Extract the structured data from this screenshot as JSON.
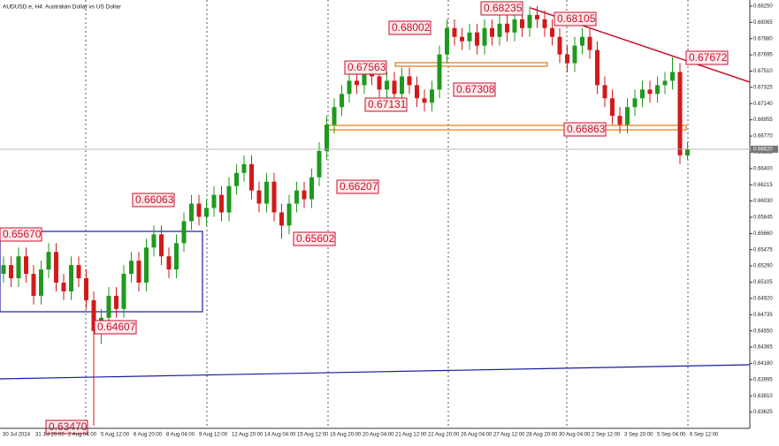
{
  "chart_data": {
    "type": "candlestick",
    "title": "AUDUSD.e, H4:  Australian Dollar vs US Dollar",
    "up_color": "#1e9a1e",
    "down_color": "#d11a1a",
    "open": [
      0.652,
      0.653,
      0.6515,
      0.654,
      0.652,
      0.6495,
      0.6525,
      0.6545,
      0.651,
      0.65,
      0.653,
      0.6515,
      0.649,
      0.6455,
      0.647,
      0.6495,
      0.648,
      0.652,
      0.6535,
      0.651,
      0.655,
      0.6565,
      0.654,
      0.6525,
      0.6555,
      0.658,
      0.66,
      0.6585,
      0.6595,
      0.661,
      0.659,
      0.662,
      0.6635,
      0.6645,
      0.6615,
      0.66,
      0.6625,
      0.659,
      0.6575,
      0.66,
      0.6615,
      0.6605,
      0.663,
      0.666,
      0.669,
      0.671,
      0.6725,
      0.674,
      0.6735,
      0.675,
      0.6745,
      0.673,
      0.674,
      0.6725,
      0.6745,
      0.6735,
      0.672,
      0.6715,
      0.673,
      0.677,
      0.68,
      0.679,
      0.6785,
      0.6795,
      0.678,
      0.68,
      0.679,
      0.6805,
      0.6795,
      0.681,
      0.68,
      0.6815,
      0.681,
      0.68,
      0.679,
      0.677,
      0.676,
      0.678,
      0.679,
      0.6775,
      0.6735,
      0.672,
      0.67,
      0.669,
      0.671,
      0.672,
      0.673,
      0.6725,
      0.6735,
      0.674,
      0.675,
      0.6655
    ],
    "high": [
      0.654,
      0.654,
      0.655,
      0.655,
      0.653,
      0.6535,
      0.6555,
      0.6555,
      0.652,
      0.654,
      0.654,
      0.6525,
      0.65,
      0.648,
      0.6505,
      0.6505,
      0.653,
      0.6545,
      0.6545,
      0.656,
      0.6575,
      0.6575,
      0.655,
      0.6565,
      0.659,
      0.661,
      0.661,
      0.6605,
      0.662,
      0.662,
      0.663,
      0.6645,
      0.6655,
      0.6655,
      0.6625,
      0.6635,
      0.6635,
      0.66,
      0.661,
      0.6625,
      0.6625,
      0.664,
      0.667,
      0.67,
      0.672,
      0.6735,
      0.675,
      0.675,
      0.676,
      0.676,
      0.6755,
      0.675,
      0.675,
      0.6755,
      0.6755,
      0.6745,
      0.673,
      0.674,
      0.678,
      0.681,
      0.681,
      0.68,
      0.6805,
      0.6805,
      0.681,
      0.681,
      0.6815,
      0.6815,
      0.682,
      0.6824,
      0.6825,
      0.6825,
      0.682,
      0.681,
      0.68,
      0.678,
      0.679,
      0.68,
      0.68,
      0.6785,
      0.6745,
      0.673,
      0.671,
      0.672,
      0.673,
      0.674,
      0.674,
      0.6745,
      0.675,
      0.6767,
      0.676,
      0.667
    ],
    "low": [
      0.651,
      0.6505,
      0.6505,
      0.651,
      0.6485,
      0.6485,
      0.6515,
      0.65,
      0.649,
      0.649,
      0.6505,
      0.648,
      0.6347,
      0.644,
      0.646,
      0.647,
      0.647,
      0.651,
      0.65,
      0.65,
      0.654,
      0.653,
      0.6515,
      0.6515,
      0.6545,
      0.657,
      0.6575,
      0.6575,
      0.6585,
      0.658,
      0.658,
      0.661,
      0.6625,
      0.6605,
      0.659,
      0.659,
      0.658,
      0.656,
      0.6565,
      0.659,
      0.6595,
      0.6595,
      0.662,
      0.665,
      0.668,
      0.67,
      0.6715,
      0.6725,
      0.6725,
      0.6735,
      0.672,
      0.672,
      0.6715,
      0.6715,
      0.6725,
      0.671,
      0.6705,
      0.6705,
      0.672,
      0.676,
      0.678,
      0.6775,
      0.6775,
      0.677,
      0.677,
      0.678,
      0.678,
      0.6785,
      0.6785,
      0.679,
      0.679,
      0.68,
      0.679,
      0.678,
      0.676,
      0.675,
      0.675,
      0.677,
      0.6765,
      0.6725,
      0.671,
      0.669,
      0.668,
      0.668,
      0.67,
      0.671,
      0.6715,
      0.6715,
      0.6725,
      0.673,
      0.6645,
      0.665
    ],
    "close": [
      0.653,
      0.6515,
      0.654,
      0.652,
      0.6495,
      0.6525,
      0.6545,
      0.651,
      0.65,
      0.653,
      0.6515,
      0.649,
      0.6455,
      0.647,
      0.6495,
      0.648,
      0.652,
      0.6535,
      0.651,
      0.655,
      0.6565,
      0.654,
      0.6525,
      0.6555,
      0.658,
      0.66,
      0.6585,
      0.6595,
      0.661,
      0.659,
      0.662,
      0.6635,
      0.6645,
      0.6615,
      0.66,
      0.6625,
      0.659,
      0.6575,
      0.66,
      0.6615,
      0.6605,
      0.663,
      0.666,
      0.669,
      0.671,
      0.6725,
      0.674,
      0.6735,
      0.675,
      0.6745,
      0.673,
      0.674,
      0.6725,
      0.6745,
      0.6735,
      0.672,
      0.6715,
      0.673,
      0.677,
      0.68,
      0.679,
      0.6785,
      0.6795,
      0.678,
      0.68,
      0.679,
      0.6805,
      0.6795,
      0.681,
      0.68,
      0.6815,
      0.681,
      0.68,
      0.679,
      0.677,
      0.676,
      0.678,
      0.679,
      0.6775,
      0.6735,
      0.672,
      0.67,
      0.669,
      0.671,
      0.672,
      0.673,
      0.6725,
      0.6735,
      0.674,
      0.675,
      0.6655,
      0.6662
    ],
    "ylim": [
      0.6344,
      0.6832
    ],
    "yticks": [
      {
        "value": 0.6825,
        "label": "0.68250"
      },
      {
        "value": 0.68065,
        "label": "0.68065"
      },
      {
        "value": 0.6788,
        "label": "0.67880"
      },
      {
        "value": 0.67695,
        "label": "0.67695"
      },
      {
        "value": 0.6751,
        "label": "0.67510"
      },
      {
        "value": 0.67325,
        "label": "0.67325"
      },
      {
        "value": 0.6714,
        "label": "0.67140"
      },
      {
        "value": 0.66955,
        "label": "0.66955"
      },
      {
        "value": 0.6677,
        "label": "0.66770"
      },
      {
        "value": 0.66585,
        "label": "0.66585"
      },
      {
        "value": 0.664,
        "label": "0.66400"
      },
      {
        "value": 0.66215,
        "label": "0.66215"
      },
      {
        "value": 0.6603,
        "label": "0.66030"
      },
      {
        "value": 0.65845,
        "label": "0.65845"
      },
      {
        "value": 0.6566,
        "label": "0.65660"
      },
      {
        "value": 0.65475,
        "label": "0.65475"
      },
      {
        "value": 0.6529,
        "label": "0.65290"
      },
      {
        "value": 0.65105,
        "label": "0.65105"
      },
      {
        "value": 0.6492,
        "label": "0.64920"
      },
      {
        "value": 0.64735,
        "label": "0.64735"
      },
      {
        "value": 0.6455,
        "label": "0.64550"
      },
      {
        "value": 0.64365,
        "label": "0.64365"
      },
      {
        "value": 0.6418,
        "label": "0.64180"
      },
      {
        "value": 0.63995,
        "label": "0.63995"
      },
      {
        "value": 0.6381,
        "label": "0.63810"
      },
      {
        "value": 0.63625,
        "label": "0.63625"
      }
    ],
    "last_price": {
      "value": 0.6662,
      "label": "0.66620"
    },
    "x_labels": [
      "30 Jul 2024",
      "31 Jul 20:00",
      "2 Aug 04:00",
      "5 Aug 12:00",
      "6 Aug 20:00",
      "8 Aug 04:00",
      "9 Aug 12:00",
      "12 Aug 20:00",
      "14 Aug 04:00",
      "15 Aug 12:00",
      "16 Aug 20:00",
      "20 Aug 04:00",
      "21 Aug 12:00",
      "22 Aug 20:00",
      "26 Aug 04:00",
      "27 Aug 12:00",
      "28 Aug 20:00",
      "30 Aug 04:00",
      "2 Sep 12:00",
      "3 Sep 20:00",
      "5 Sep 04:00",
      "6 Sep 12:00"
    ],
    "annotations": [
      "0.68235",
      "0.68105",
      "0.68002",
      "0.67672",
      "0.67563",
      "0.67308",
      "0.67131",
      "0.66863",
      "0.66207",
      "0.66063",
      "0.65670",
      "0.65602",
      "0.64607",
      "0.63470"
    ]
  }
}
